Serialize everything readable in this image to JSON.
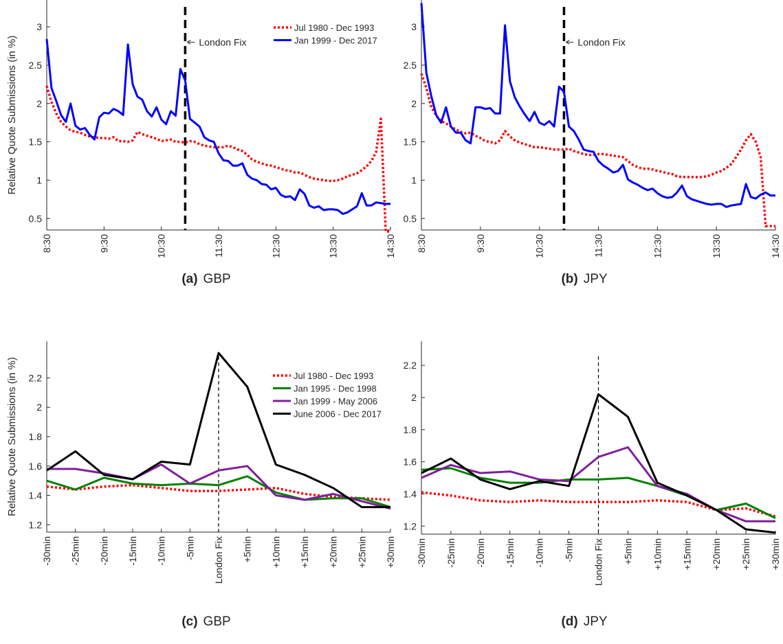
{
  "chart_data": [
    {
      "panel": "a",
      "caption_letter": "(a)",
      "caption_text": "GBP",
      "type": "line",
      "ylabel": "Relative Quote Submissions (in %)",
      "xlabel": "",
      "x_tick_labels": [
        "8:30",
        "9:30",
        "10:30",
        "11:30",
        "12:30",
        "13:30",
        "14:30"
      ],
      "x_range_minutes": [
        510,
        870
      ],
      "ylim": [
        0.35,
        3.35
      ],
      "y_ticks": [
        0.5,
        1,
        1.5,
        2,
        2.5,
        3
      ],
      "y_tick_labels": [
        "0.5",
        "1",
        "1.5",
        "2",
        "2.5",
        "3"
      ],
      "vline": {
        "x": 655,
        "style": "dashed-thick"
      },
      "annotation": {
        "text": "London Fix",
        "x": 655,
        "y": 2.8
      },
      "legend_position": "top-right",
      "series": [
        {
          "name": "Jul 1980 - Dec 1993",
          "color": "#ff0000",
          "style": "dotted",
          "x": [
            510,
            515,
            520,
            525,
            530,
            535,
            540,
            545,
            550,
            555,
            560,
            565,
            570,
            575,
            580,
            585,
            590,
            595,
            600,
            605,
            610,
            615,
            620,
            625,
            630,
            635,
            640,
            645,
            650,
            655,
            660,
            665,
            670,
            675,
            680,
            685,
            690,
            695,
            700,
            705,
            710,
            715,
            720,
            725,
            730,
            735,
            740,
            745,
            750,
            755,
            760,
            765,
            770,
            775,
            780,
            785,
            790,
            795,
            800,
            805,
            810,
            815,
            820,
            825,
            830,
            835,
            840,
            845,
            850,
            855,
            860,
            865,
            870
          ],
          "values": [
            2.23,
            2.02,
            1.87,
            1.76,
            1.7,
            1.65,
            1.63,
            1.62,
            1.59,
            1.57,
            1.56,
            1.55,
            1.55,
            1.54,
            1.56,
            1.51,
            1.51,
            1.5,
            1.52,
            1.63,
            1.6,
            1.58,
            1.56,
            1.54,
            1.51,
            1.52,
            1.53,
            1.5,
            1.5,
            1.49,
            1.51,
            1.5,
            1.47,
            1.45,
            1.44,
            1.43,
            1.43,
            1.43,
            1.45,
            1.43,
            1.4,
            1.38,
            1.33,
            1.27,
            1.24,
            1.22,
            1.2,
            1.19,
            1.17,
            1.15,
            1.13,
            1.12,
            1.1,
            1.1,
            1.07,
            1.04,
            1.02,
            1.01,
            1.0,
            0.99,
            0.99,
            1.0,
            1.02,
            1.05,
            1.07,
            1.09,
            1.13,
            1.18,
            1.25,
            1.37,
            1.8,
            0.33,
            0.33
          ]
        },
        {
          "name": "Jan 1999 - Dec 2017",
          "color": "#0000ff",
          "style": "solid",
          "x": [
            510,
            515,
            520,
            525,
            530,
            535,
            540,
            545,
            550,
            555,
            560,
            565,
            570,
            575,
            580,
            585,
            590,
            595,
            600,
            605,
            610,
            615,
            620,
            625,
            630,
            635,
            640,
            645,
            650,
            655,
            660,
            665,
            670,
            675,
            680,
            685,
            690,
            695,
            700,
            705,
            710,
            715,
            720,
            725,
            730,
            735,
            740,
            745,
            750,
            755,
            760,
            765,
            770,
            775,
            780,
            785,
            790,
            795,
            800,
            805,
            810,
            815,
            820,
            825,
            830,
            835,
            840,
            845,
            850,
            855,
            860,
            865,
            870
          ],
          "values": [
            2.84,
            2.2,
            2.03,
            1.85,
            1.76,
            2.0,
            1.71,
            1.66,
            1.68,
            1.59,
            1.53,
            1.82,
            1.88,
            1.87,
            1.93,
            1.9,
            1.85,
            2.77,
            2.25,
            2.09,
            2.05,
            1.9,
            1.83,
            1.95,
            1.79,
            1.73,
            1.9,
            1.84,
            2.45,
            2.3,
            1.8,
            1.75,
            1.7,
            1.56,
            1.52,
            1.5,
            1.35,
            1.26,
            1.25,
            1.19,
            1.19,
            1.22,
            1.07,
            1.02,
            1.0,
            0.95,
            0.94,
            0.88,
            0.9,
            0.81,
            0.78,
            0.79,
            0.74,
            0.88,
            0.82,
            0.67,
            0.64,
            0.66,
            0.61,
            0.62,
            0.62,
            0.61,
            0.56,
            0.58,
            0.62,
            0.66,
            0.83,
            0.67,
            0.67,
            0.71,
            0.7,
            0.69,
            0.69
          ]
        }
      ]
    },
    {
      "panel": "b",
      "caption_letter": "(b)",
      "caption_text": "JPY",
      "type": "line",
      "ylabel": "",
      "xlabel": "",
      "x_tick_labels": [
        "8:30",
        "9:30",
        "10:30",
        "11:30",
        "12:30",
        "13:30",
        "14:30"
      ],
      "x_range_minutes": [
        510,
        870
      ],
      "ylim": [
        0.35,
        3.35
      ],
      "y_ticks": [
        0.5,
        1,
        1.5,
        2,
        2.5,
        3
      ],
      "y_tick_labels": [
        "0.5",
        "1",
        "1.5",
        "2",
        "2.5",
        "3"
      ],
      "vline": {
        "x": 655,
        "style": "dashed-thick"
      },
      "annotation": {
        "text": "London Fix",
        "x": 655,
        "y": 2.8
      },
      "series": [
        {
          "name": "Jul 1980 - Dec 1993",
          "color": "#ff0000",
          "style": "dotted",
          "x": [
            510,
            515,
            520,
            525,
            530,
            535,
            540,
            545,
            550,
            555,
            560,
            565,
            570,
            575,
            580,
            585,
            590,
            595,
            600,
            605,
            610,
            615,
            620,
            625,
            630,
            635,
            640,
            645,
            650,
            655,
            660,
            665,
            670,
            675,
            680,
            685,
            690,
            695,
            700,
            705,
            710,
            715,
            720,
            725,
            730,
            735,
            740,
            745,
            750,
            755,
            760,
            765,
            770,
            775,
            780,
            785,
            790,
            795,
            800,
            805,
            810,
            815,
            820,
            825,
            830,
            835,
            840,
            845,
            850,
            855,
            860,
            865,
            870
          ],
          "values": [
            2.39,
            2.2,
            1.96,
            1.84,
            1.77,
            1.74,
            1.7,
            1.66,
            1.63,
            1.61,
            1.62,
            1.58,
            1.55,
            1.51,
            1.5,
            1.48,
            1.52,
            1.64,
            1.57,
            1.52,
            1.49,
            1.47,
            1.45,
            1.43,
            1.43,
            1.42,
            1.41,
            1.4,
            1.4,
            1.4,
            1.41,
            1.38,
            1.36,
            1.34,
            1.33,
            1.33,
            1.34,
            1.34,
            1.33,
            1.32,
            1.31,
            1.3,
            1.25,
            1.2,
            1.17,
            1.15,
            1.15,
            1.14,
            1.12,
            1.11,
            1.09,
            1.08,
            1.05,
            1.04,
            1.04,
            1.04,
            1.04,
            1.04,
            1.05,
            1.07,
            1.1,
            1.12,
            1.16,
            1.21,
            1.3,
            1.4,
            1.52,
            1.6,
            1.5,
            1.3,
            0.4,
            0.4,
            0.4
          ]
        },
        {
          "name": "Jan 1999 - Dec 2017",
          "color": "#0000ff",
          "style": "solid",
          "x": [
            510,
            515,
            520,
            525,
            530,
            535,
            540,
            545,
            550,
            555,
            560,
            565,
            570,
            575,
            580,
            585,
            590,
            595,
            600,
            605,
            610,
            615,
            620,
            625,
            630,
            635,
            640,
            645,
            650,
            655,
            660,
            665,
            670,
            675,
            680,
            685,
            690,
            695,
            700,
            705,
            710,
            715,
            720,
            725,
            730,
            735,
            740,
            745,
            750,
            755,
            760,
            765,
            770,
            775,
            780,
            785,
            790,
            795,
            800,
            805,
            810,
            815,
            820,
            825,
            830,
            835,
            840,
            845,
            850,
            855,
            860,
            865,
            870
          ],
          "values": [
            3.31,
            2.4,
            2.1,
            1.85,
            1.75,
            1.95,
            1.7,
            1.62,
            1.62,
            1.52,
            1.48,
            1.95,
            1.95,
            1.93,
            1.94,
            1.87,
            1.87,
            3.02,
            2.29,
            2.08,
            1.96,
            1.86,
            1.77,
            1.89,
            1.75,
            1.72,
            1.77,
            1.7,
            2.22,
            2.15,
            1.7,
            1.64,
            1.53,
            1.4,
            1.38,
            1.37,
            1.25,
            1.19,
            1.15,
            1.1,
            1.12,
            1.2,
            1.01,
            0.97,
            0.94,
            0.9,
            0.87,
            0.89,
            0.83,
            0.79,
            0.77,
            0.78,
            0.84,
            0.93,
            0.79,
            0.75,
            0.73,
            0.71,
            0.69,
            0.68,
            0.69,
            0.69,
            0.65,
            0.67,
            0.68,
            0.69,
            0.95,
            0.78,
            0.76,
            0.81,
            0.84,
            0.8,
            0.8
          ]
        }
      ]
    },
    {
      "panel": "c",
      "caption_letter": "(c)",
      "caption_text": "GBP",
      "type": "line",
      "ylabel": "Relative Quote Submissions (in %)",
      "xlabel": "",
      "categories": [
        "-30min",
        "-25min",
        "-20min",
        "-15min",
        "-10min",
        "-5min",
        "London Fix",
        "+5min",
        "+10min",
        "+15min",
        "+20min",
        "+25min",
        "+30min"
      ],
      "ylim": [
        1.15,
        2.45
      ],
      "y_ticks": [
        1.2,
        1.4,
        1.6,
        1.8,
        2.0,
        2.2
      ],
      "y_tick_labels": [
        "1.2",
        "1.4",
        "1.6",
        "1.8",
        "2",
        "2.2"
      ],
      "vline": {
        "category": "London Fix",
        "style": "dashed-thin"
      },
      "legend_position": "top-right",
      "series": [
        {
          "name": "Jul 1980 - Dec 1993",
          "color": "#ff0000",
          "style": "dotted",
          "values": [
            1.46,
            1.44,
            1.46,
            1.47,
            1.45,
            1.43,
            1.43,
            1.44,
            1.45,
            1.41,
            1.39,
            1.38,
            1.37
          ]
        },
        {
          "name": "Jan 1995 - Dec 1998",
          "color": "#008000",
          "style": "solid",
          "values": [
            1.5,
            1.44,
            1.52,
            1.48,
            1.47,
            1.48,
            1.47,
            1.53,
            1.42,
            1.37,
            1.38,
            1.38,
            1.32
          ]
        },
        {
          "name": "Jan 1999 - May 2006",
          "color": "#7e1e9c",
          "style": "solid",
          "values": [
            1.58,
            1.58,
            1.55,
            1.51,
            1.61,
            1.48,
            1.57,
            1.6,
            1.4,
            1.37,
            1.41,
            1.36,
            1.31
          ]
        },
        {
          "name": "June 2006 - Dec 2017",
          "color": "#000000",
          "style": "solid",
          "values": [
            1.57,
            1.7,
            1.54,
            1.51,
            1.63,
            1.61,
            2.37,
            2.14,
            1.61,
            1.54,
            1.45,
            1.32,
            1.32
          ]
        }
      ]
    },
    {
      "panel": "d",
      "caption_letter": "(d)",
      "caption_text": "JPY",
      "type": "line",
      "ylabel": "",
      "xlabel": "",
      "categories": [
        "-30min",
        "-25min",
        "-20min",
        "-15min",
        "-10min",
        "-5min",
        "London Fix",
        "+5min",
        "+10min",
        "+15min",
        "+20min",
        "+25min",
        "+30min"
      ],
      "ylim": [
        1.15,
        2.35
      ],
      "y_ticks": [
        1.2,
        1.4,
        1.6,
        1.8,
        2.0,
        2.2
      ],
      "y_tick_labels": [
        "1.2",
        "1.4",
        "1.6",
        "1.8",
        "2",
        "2.2"
      ],
      "vline": {
        "category": "London Fix",
        "style": "dashed-thin"
      },
      "series": [
        {
          "name": "Jul 1980 - Dec 1993",
          "color": "#ff0000",
          "style": "dotted",
          "values": [
            1.41,
            1.39,
            1.36,
            1.35,
            1.36,
            1.35,
            1.35,
            1.35,
            1.36,
            1.35,
            1.3,
            1.31,
            1.26
          ]
        },
        {
          "name": "Jan 1995 - Dec 1998",
          "color": "#008000",
          "style": "solid",
          "values": [
            1.55,
            1.56,
            1.5,
            1.47,
            1.47,
            1.49,
            1.49,
            1.5,
            1.45,
            1.39,
            1.3,
            1.34,
            1.25
          ]
        },
        {
          "name": "Jan 1999 - May 2006",
          "color": "#7e1e9c",
          "style": "solid",
          "values": [
            1.5,
            1.58,
            1.53,
            1.54,
            1.49,
            1.48,
            1.63,
            1.69,
            1.45,
            1.4,
            1.3,
            1.23,
            1.23
          ]
        },
        {
          "name": "June 2006 - Dec 2017",
          "color": "#000000",
          "style": "solid",
          "values": [
            1.53,
            1.62,
            1.49,
            1.43,
            1.48,
            1.45,
            2.02,
            1.88,
            1.47,
            1.39,
            1.3,
            1.18,
            1.16
          ]
        }
      ]
    }
  ]
}
